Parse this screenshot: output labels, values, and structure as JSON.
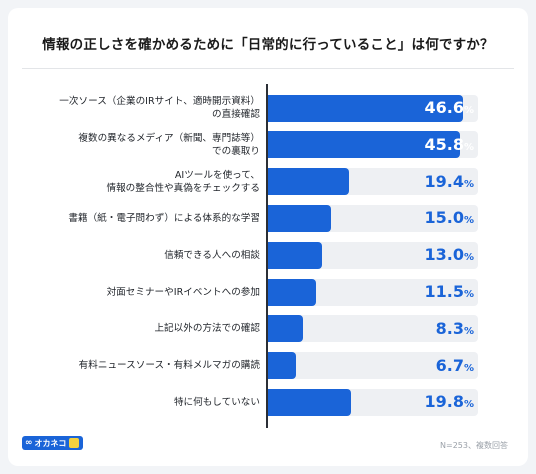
{
  "chart_data": {
    "type": "bar",
    "orientation": "horizontal",
    "title": "情報の正しさを確かめるために「日常的に行っていること」は何ですか？",
    "categories": [
      [
        "一次ソース（企業のIRサイト、適時開示資料）",
        "の直接確認"
      ],
      [
        "複数の異なるメディア（新聞、専門誌等）",
        "での裏取り"
      ],
      [
        "AIツールを使って、",
        "情報の整合性や真偽をチェックする"
      ],
      [
        "書籍（紙・電子問わず）による体系的な学習"
      ],
      [
        "信頼できる人への相談"
      ],
      [
        "対面セミナーやIRイベントへの参加"
      ],
      [
        "上記以外の方法での確認"
      ],
      [
        "有料ニュースソース・有料メルマガの購読"
      ],
      [
        "特に何もしていない"
      ]
    ],
    "values": [
      46.6,
      45.8,
      19.4,
      15.0,
      13.0,
      11.5,
      8.3,
      6.7,
      19.8
    ],
    "value_labels": [
      "46.6",
      "45.8",
      "19.4",
      "15.0",
      "13.0",
      "11.5",
      "8.3",
      "6.7",
      "19.8"
    ],
    "unit": "%",
    "xlim": [
      0,
      50
    ],
    "grid": false,
    "bar_color": "#1a64d8",
    "track_color": "#eef0f3"
  },
  "footer": {
    "note": "N=253、複数回答",
    "logo_text": "オカネコ"
  }
}
